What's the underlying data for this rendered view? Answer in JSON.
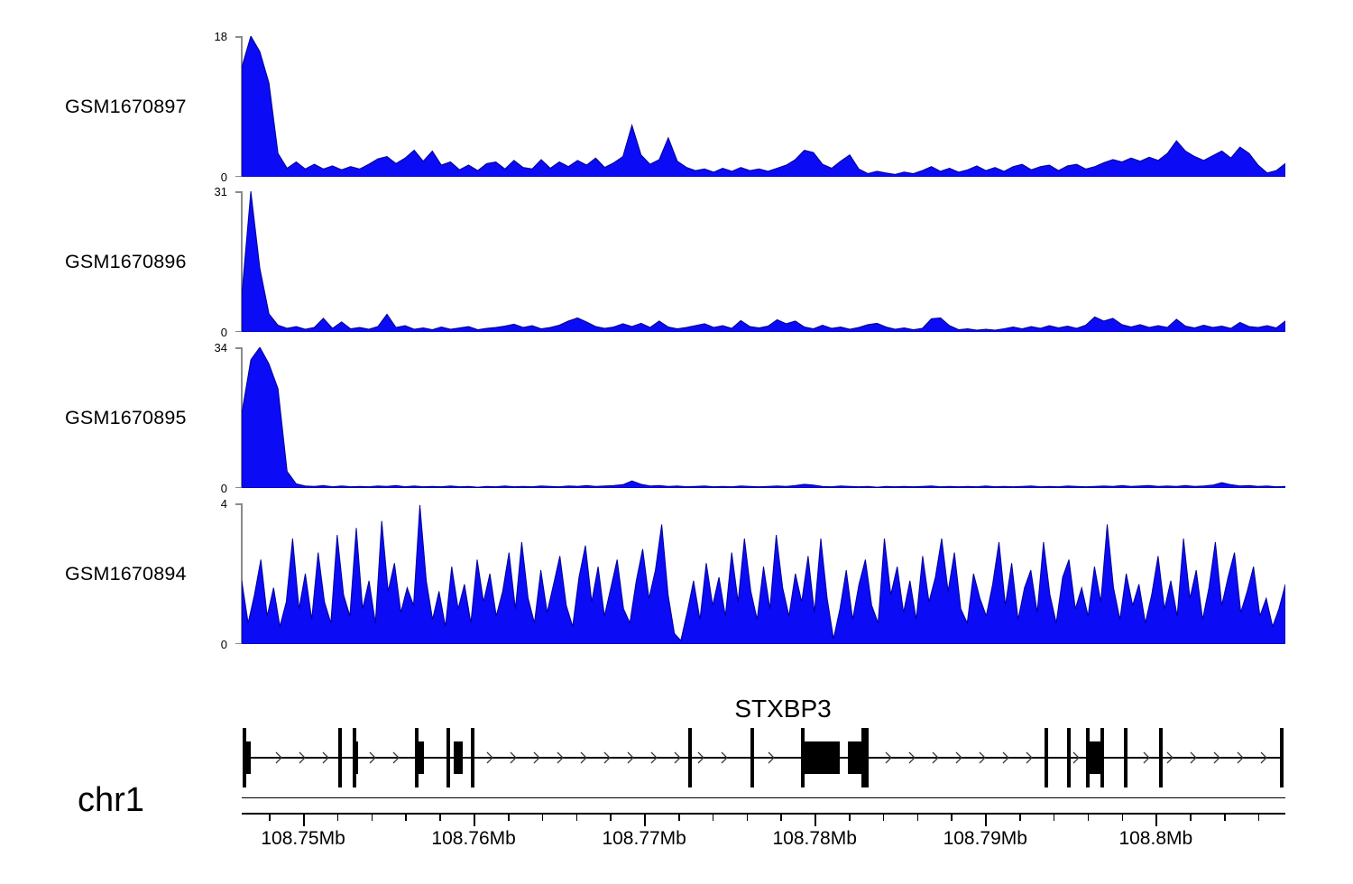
{
  "chart_data": {
    "type": "area",
    "description": "Genome browser coverage tracks (read pileup) for four GEO samples over the STXBP3 locus",
    "chromosome": "chr1",
    "colors": {
      "signal_fill": "#0b0bf5",
      "signal_stroke": "#00009a",
      "bracket": "#8a8a8a",
      "axis": "#000000"
    },
    "x_axis": {
      "unit": "Mb",
      "start": 108.7464,
      "end": 108.8076,
      "minor_tick_interval": 0.002,
      "major_ticks": [
        {
          "value": 108.75,
          "label": "108.75Mb"
        },
        {
          "value": 108.76,
          "label": "108.76Mb"
        },
        {
          "value": 108.77,
          "label": "108.77Mb"
        },
        {
          "value": 108.78,
          "label": "108.78Mb"
        },
        {
          "value": 108.79,
          "label": "108.79Mb"
        },
        {
          "value": 108.8,
          "label": "108.8Mb"
        }
      ]
    },
    "tracks": [
      {
        "name": "GSM1670897",
        "ymin": 0,
        "ymax": 18,
        "values": [
          14,
          18,
          16,
          12,
          3,
          1.1,
          1.9,
          1,
          1.6,
          1,
          1.4,
          0.9,
          1.3,
          1,
          1.6,
          2.3,
          2.6,
          1.7,
          2.4,
          3.4,
          2,
          3.3,
          1.5,
          1.9,
          0.9,
          1.5,
          0.8,
          1.7,
          1.9,
          1,
          2.1,
          1.2,
          1,
          2.2,
          1.1,
          1.9,
          1.3,
          2.1,
          1.5,
          2.4,
          1.2,
          1.8,
          2.6,
          6.6,
          2.8,
          1.6,
          2.2,
          5,
          2,
          1.2,
          0.8,
          1,
          0.6,
          1.1,
          0.7,
          1.2,
          0.8,
          1,
          0.7,
          1.1,
          1.5,
          2.2,
          3.4,
          3.1,
          1.6,
          1.1,
          2,
          2.8,
          1,
          0.4,
          0.7,
          0.5,
          0.3,
          0.6,
          0.4,
          0.8,
          1.3,
          0.7,
          1.1,
          0.6,
          0.9,
          1.4,
          0.8,
          1.2,
          0.7,
          1.3,
          1.6,
          0.9,
          1.3,
          1.5,
          0.8,
          1.4,
          1.6,
          1,
          1.3,
          1.8,
          2.2,
          1.9,
          2.4,
          2,
          2.5,
          2.1,
          3,
          4.6,
          3.3,
          2.6,
          2.1,
          2.7,
          3.3,
          2.4,
          3.8,
          3,
          1.5,
          0.5,
          0.8,
          1.7
        ]
      },
      {
        "name": "GSM1670896",
        "ymin": 0,
        "ymax": 31,
        "values": [
          8,
          31,
          14,
          4,
          1.5,
          0.8,
          1.2,
          0.6,
          1,
          3,
          0.8,
          2.2,
          0.7,
          1,
          0.6,
          1.2,
          3.9,
          1,
          1.4,
          0.6,
          0.9,
          0.5,
          1.1,
          0.6,
          0.9,
          1.2,
          0.5,
          0.8,
          1,
          1.3,
          1.7,
          1,
          1.4,
          0.7,
          1,
          1.5,
          2.4,
          3.1,
          2.2,
          1.2,
          0.8,
          1.1,
          1.8,
          1.2,
          1.9,
          1,
          2.4,
          1.1,
          0.7,
          1,
          1.4,
          1.8,
          1,
          1.4,
          0.8,
          2.5,
          1.2,
          0.9,
          1.3,
          2.7,
          1.8,
          2.4,
          1.1,
          0.7,
          1.5,
          0.8,
          1.1,
          0.6,
          1,
          1.6,
          1.9,
          1.1,
          0.6,
          0.9,
          0.5,
          0.8,
          2.9,
          3.1,
          1.4,
          0.5,
          0.7,
          0.4,
          0.6,
          0.4,
          0.7,
          1.1,
          0.7,
          1.2,
          0.8,
          1.4,
          0.9,
          1.3,
          0.8,
          1.5,
          3.3,
          2.4,
          3,
          1.6,
          1.1,
          1.6,
          1,
          1.4,
          1,
          2.8,
          1.3,
          0.9,
          1.5,
          1,
          1.3,
          0.8,
          2.1,
          1.2,
          1,
          1.4,
          0.9,
          2.4
        ]
      },
      {
        "name": "GSM1670895",
        "ymin": 0,
        "ymax": 34,
        "values": [
          18,
          31,
          34,
          30,
          24,
          4,
          1,
          0.5,
          0.4,
          0.6,
          0.3,
          0.5,
          0.3,
          0.4,
          0.3,
          0.5,
          0.4,
          0.6,
          0.3,
          0.5,
          0.3,
          0.4,
          0.3,
          0.5,
          0.3,
          0.4,
          0.2,
          0.4,
          0.3,
          0.5,
          0.3,
          0.4,
          0.3,
          0.5,
          0.4,
          0.3,
          0.5,
          0.4,
          0.6,
          0.4,
          0.5,
          0.6,
          0.8,
          1.7,
          0.9,
          0.5,
          0.6,
          0.4,
          0.5,
          0.3,
          0.4,
          0.5,
          0.3,
          0.4,
          0.3,
          0.5,
          0.4,
          0.3,
          0.4,
          0.5,
          0.4,
          0.6,
          0.9,
          0.7,
          0.4,
          0.3,
          0.5,
          0.4,
          0.3,
          0.4,
          0.2,
          0.4,
          0.3,
          0.4,
          0.3,
          0.4,
          0.5,
          0.3,
          0.4,
          0.3,
          0.4,
          0.3,
          0.5,
          0.3,
          0.4,
          0.3,
          0.4,
          0.5,
          0.3,
          0.4,
          0.3,
          0.5,
          0.4,
          0.3,
          0.4,
          0.5,
          0.4,
          0.6,
          0.4,
          0.5,
          0.6,
          0.4,
          0.5,
          0.4,
          0.6,
          0.4,
          0.5,
          0.7,
          1.3,
          0.8,
          0.5,
          0.6,
          0.4,
          0.5,
          0.3,
          0.4
        ]
      },
      {
        "name": "GSM1670894",
        "ymin": 0,
        "ymax": 4,
        "values": [
          1.8,
          0.6,
          1.4,
          2.4,
          0.8,
          1.6,
          0.5,
          1.2,
          3,
          1,
          2,
          0.7,
          2.6,
          1.2,
          0.6,
          3.1,
          1.4,
          0.8,
          3.3,
          1,
          1.8,
          0.6,
          3.5,
          1.5,
          2.3,
          0.9,
          1.6,
          1.1,
          3.95,
          1.8,
          0.7,
          1.5,
          0.5,
          2.2,
          1,
          1.7,
          0.6,
          2.4,
          1.2,
          2,
          0.8,
          1.5,
          2.6,
          1,
          2.9,
          1.3,
          0.6,
          2.1,
          0.9,
          1.7,
          2.5,
          1.1,
          0.5,
          1.9,
          2.8,
          1.2,
          2.2,
          0.8,
          1.6,
          2.4,
          1,
          0.6,
          1.8,
          2.7,
          1.3,
          2.1,
          3.4,
          1.4,
          0.3,
          0.1,
          0.9,
          1.8,
          0.7,
          2.3,
          1.1,
          1.9,
          0.8,
          2.6,
          1.2,
          3,
          1.5,
          0.7,
          2.2,
          1,
          3.1,
          1.6,
          0.8,
          2,
          1.2,
          2.5,
          0.9,
          3,
          1.3,
          0.15,
          1,
          2.1,
          0.7,
          1.7,
          2.4,
          1.1,
          0.6,
          3,
          1.4,
          2.2,
          0.9,
          1.8,
          0.7,
          2.5,
          1.2,
          1.9,
          3,
          1.5,
          2.6,
          1,
          0.6,
          2,
          1.3,
          0.8,
          1.7,
          2.9,
          1.1,
          2.3,
          0.7,
          1.6,
          2.1,
          0.9,
          2.9,
          1.4,
          0.6,
          1.9,
          2.4,
          1,
          1.6,
          0.8,
          2.2,
          1.2,
          3.4,
          1.6,
          0.7,
          2,
          1.1,
          1.7,
          0.6,
          1.4,
          2.5,
          1,
          1.8,
          0.8,
          3,
          1.3,
          2.1,
          0.7,
          1.6,
          2.9,
          1.1,
          1.9,
          2.6,
          0.9,
          1.5,
          2.2,
          0.8,
          1.3,
          0.5,
          1,
          1.7
        ]
      }
    ],
    "gene_track": {
      "gene_label": "STXBP3",
      "strand": "right",
      "label_center_frac": 0.5186,
      "start_frac": 0.0017,
      "end_frac": 0.9983,
      "exons_thin_frac": [
        0.0026,
        0.0942,
        0.108,
        0.1677,
        0.1979,
        0.2213,
        0.4295,
        0.4892,
        0.5376,
        0.5955,
        0.599,
        0.771,
        0.7926,
        0.8107,
        0.8246,
        0.847,
        0.8807,
        0.9965
      ],
      "exons_thick_frac": [
        {
          "start": 0.0035,
          "width": 0.0052
        },
        {
          "start": 0.1063,
          "width": 0.0052
        },
        {
          "start": 0.166,
          "width": 0.0086
        },
        {
          "start": 0.2031,
          "width": 0.0086
        },
        {
          "start": 0.5367,
          "width": 0.0363
        },
        {
          "start": 0.5808,
          "width": 0.013
        },
        {
          "start": 0.8124,
          "width": 0.0112
        }
      ]
    }
  }
}
